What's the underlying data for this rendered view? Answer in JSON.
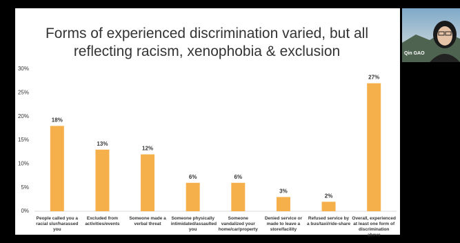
{
  "participant": {
    "name": "Qin GAO"
  },
  "chart_data": {
    "type": "bar",
    "title": "Forms of experienced discrimination varied, but all reflecting racism, xenophobia & exclusion",
    "categories": [
      "People called you a racial slur/harassed you",
      "Excluded from activities/events",
      "Someone made a verbal threat",
      "Someone physically intimidated/assaulted you",
      "Someone vandalized your home/car/property",
      "Denied service or made to leave a store/facility",
      "Refused service by a bus/taxi/ride-share",
      "Overall, experienced at least one form of discrimination above"
    ],
    "values": [
      18,
      13,
      12,
      6,
      6,
      3,
      2,
      27
    ],
    "value_labels": [
      "18%",
      "13%",
      "12%",
      "6%",
      "6%",
      "3%",
      "2%",
      "27%"
    ],
    "color": "#f5b04c",
    "ylim": [
      0,
      30
    ],
    "yticks": [
      {
        "value": 0,
        "label": "0%"
      },
      {
        "value": 5,
        "label": "5%"
      },
      {
        "value": 10,
        "label": "10%"
      },
      {
        "value": 15,
        "label": "15%"
      },
      {
        "value": 20,
        "label": "20%"
      },
      {
        "value": 25,
        "label": "25%"
      },
      {
        "value": 30,
        "label": "30%"
      }
    ],
    "grid": false
  }
}
